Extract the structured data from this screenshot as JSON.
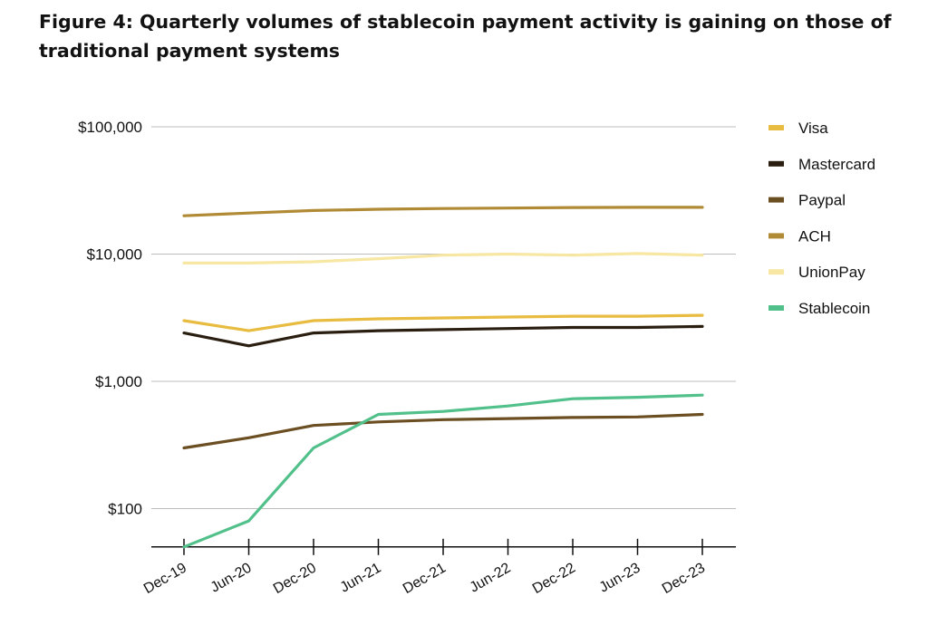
{
  "figure": {
    "title": "Figure 4: Quarterly volumes of stablecoin payment activity is gaining on those of traditional payment systems"
  },
  "chart_data": {
    "type": "line",
    "title": "Figure 4: Quarterly volumes of stablecoin payment activity is gaining on those of traditional payment systems",
    "xlabel": "",
    "ylabel": "",
    "y_scale": "log",
    "ylim": [
      50,
      100000
    ],
    "grid": "horizontal",
    "legend_position": "right",
    "y_ticks": [
      {
        "value": 100,
        "label": "$100"
      },
      {
        "value": 1000,
        "label": "$1,000"
      },
      {
        "value": 10000,
        "label": "$10,000"
      },
      {
        "value": 100000,
        "label": "$100,000"
      }
    ],
    "categories": [
      "Dec-19",
      "Jun-20",
      "Dec-20",
      "Jun-21",
      "Dec-21",
      "Jun-22",
      "Dec-22",
      "Jun-23",
      "Dec-23"
    ],
    "series": [
      {
        "name": "Visa",
        "color": "#e8bc40",
        "values": [
          3000,
          2500,
          3000,
          3100,
          3150,
          3200,
          3250,
          3250,
          3300
        ]
      },
      {
        "name": "Mastercard",
        "color": "#2a1e10",
        "values": [
          2400,
          1900,
          2400,
          2500,
          2550,
          2600,
          2650,
          2650,
          2700
        ]
      },
      {
        "name": "Paypal",
        "color": "#6b4e22",
        "values": [
          300,
          360,
          450,
          480,
          500,
          510,
          520,
          525,
          550
        ]
      },
      {
        "name": "ACH",
        "color": "#b08a35",
        "values": [
          20000,
          21000,
          22000,
          22500,
          22800,
          23000,
          23200,
          23300,
          23300
        ]
      },
      {
        "name": "UnionPay",
        "color": "#f7e7a3",
        "values": [
          8500,
          8500,
          8700,
          9200,
          9800,
          10000,
          9800,
          10100,
          9800
        ]
      },
      {
        "name": "Stablecoin",
        "color": "#52c08a",
        "values": [
          50,
          80,
          300,
          550,
          580,
          640,
          730,
          750,
          780
        ]
      }
    ]
  }
}
